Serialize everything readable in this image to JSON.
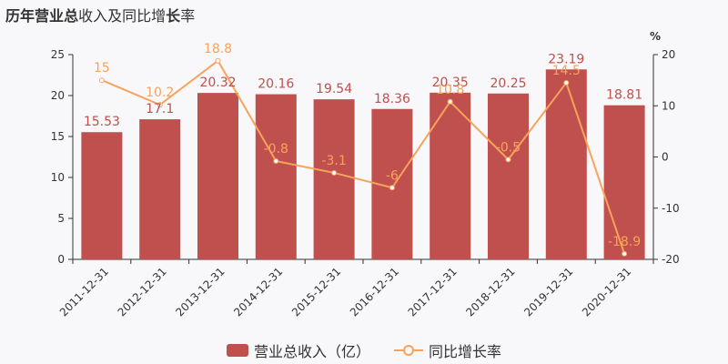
{
  "colors": {
    "bar": "#c0504d",
    "bar_label": "#c0504d",
    "line": "#f7a35c",
    "line_label": "#f7a35c",
    "axis": "#333333",
    "background": "#f8f7f9"
  },
  "legend": {
    "bar_label": "营业总收入（亿）",
    "line_label": "同比增长率",
    "position": "bottom"
  },
  "chart_data": {
    "type": "bar",
    "title": "历年营业总收入及同比增长率",
    "title_bold_parts": [
      "历年",
      "营业总",
      "",
      "",
      "",
      "长"
    ],
    "categories": [
      "2011-12-31",
      "2012-12-31",
      "2013-12-31",
      "2014-12-31",
      "2015-12-31",
      "2016-12-31",
      "2017-12-31",
      "2018-12-31",
      "2019-12-31",
      "2020-12-31"
    ],
    "series": [
      {
        "name": "营业总收入（亿）",
        "type": "bar",
        "axis": "left",
        "values": [
          15.53,
          17.1,
          20.32,
          20.16,
          19.54,
          18.36,
          20.35,
          20.25,
          23.19,
          18.81
        ],
        "labels": [
          "15.53",
          "17.1",
          "20.32",
          "20.16",
          "19.54",
          "18.36",
          "20.35",
          "20.25",
          "23.19",
          "18.81"
        ]
      },
      {
        "name": "同比增长率",
        "type": "line",
        "axis": "right",
        "values": [
          15,
          10.2,
          18.8,
          -0.8,
          -3.1,
          -6,
          10.8,
          -0.5,
          14.5,
          -18.9
        ],
        "labels": [
          "15",
          "10.2",
          "18.8",
          "-0.8",
          "-3.1",
          "-6",
          "10.8",
          "-0.5",
          "14.5",
          "-18.9"
        ]
      }
    ],
    "y_left": {
      "min": 0,
      "max": 25,
      "ticks": [
        "0",
        "5",
        "10",
        "15",
        "20",
        "25"
      ]
    },
    "y_right": {
      "min": -20,
      "max": 20,
      "ticks": [
        "-20",
        "-10",
        "0",
        "10",
        "20"
      ],
      "unit": "%"
    },
    "grid": false
  }
}
